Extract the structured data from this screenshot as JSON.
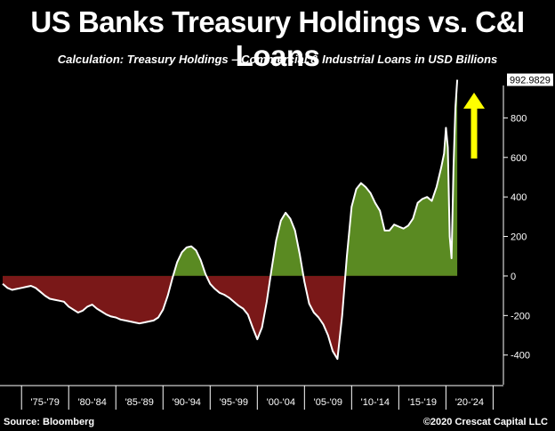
{
  "title": "US Banks Treasury Holdings vs. C&I Loans",
  "subtitle": "Calculation: Treasury Holdings – Commercial & Industrial Loans in USD Billions",
  "source_left": "Source: Bloomberg",
  "source_right": "©2020 Crescat Capital LLC",
  "last_value_label": "992.9829",
  "colors": {
    "positive": "#5a8a22",
    "negative": "#7a1818",
    "line": "#ffffff",
    "arrow": "#ffff00",
    "background": "#000000"
  },
  "chart_data": {
    "type": "area",
    "ylim": [
      -550,
      1000
    ],
    "y_ticks": [
      800,
      600,
      400,
      200,
      0,
      -200,
      -400
    ],
    "x_tick_labels": [
      "'75-'79",
      "'80-'84",
      "'85-'89",
      "'90-'94",
      "'95-'99",
      "'00-'04",
      "'05-'09",
      "'10-'14",
      "'15-'19",
      "'20-'24"
    ],
    "xlim": [
      1973.0,
      2026.0
    ],
    "series": [
      {
        "x": [
          1973.0,
          1973.5,
          1974.0,
          1974.5,
          1975.0,
          1975.5,
          1976.0,
          1976.5,
          1977.0,
          1977.5,
          1978.0,
          1978.5,
          1979.0,
          1979.5,
          1980.0,
          1980.5,
          1981.0,
          1981.5,
          1982.0,
          1982.5,
          1983.0,
          1983.5,
          1984.0,
          1984.5,
          1985.0,
          1985.5,
          1986.0,
          1986.5,
          1987.0,
          1987.5,
          1988.0,
          1988.5,
          1989.0,
          1989.5,
          1990.0,
          1990.5,
          1991.0,
          1991.5,
          1992.0,
          1992.5,
          1993.0,
          1993.5,
          1994.0,
          1994.5,
          1995.0,
          1995.5,
          1996.0,
          1996.5,
          1997.0,
          1997.5,
          1998.0,
          1998.5,
          1999.0,
          1999.5,
          2000.0,
          2000.5,
          2001.0,
          2001.5,
          2002.0,
          2002.5,
          2003.0,
          2003.5,
          2004.0,
          2004.5,
          2005.0,
          2005.5,
          2006.0,
          2006.5,
          2007.0,
          2007.5,
          2008.0,
          2008.5,
          2009.0,
          2009.5,
          2010.0,
          2010.5,
          2011.0,
          2011.5,
          2012.0,
          2012.5,
          2013.0,
          2013.5,
          2014.0,
          2014.5,
          2015.0,
          2015.5,
          2016.0,
          2016.5,
          2017.0,
          2017.5,
          2018.0,
          2018.5,
          2019.0,
          2019.5,
          2019.8,
          2020.0,
          2020.2,
          2020.4,
          2020.6,
          2020.8,
          2021.0,
          2021.2
        ],
        "values": [
          -40,
          -60,
          -70,
          -65,
          -60,
          -55,
          -50,
          -60,
          -80,
          -100,
          -115,
          -120,
          -125,
          -130,
          -155,
          -170,
          -185,
          -175,
          -155,
          -145,
          -165,
          -180,
          -195,
          -205,
          -210,
          -220,
          -225,
          -230,
          -235,
          -240,
          -235,
          -230,
          -225,
          -210,
          -170,
          -100,
          -10,
          70,
          120,
          145,
          150,
          130,
          80,
          10,
          -40,
          -65,
          -85,
          -95,
          -110,
          -130,
          -150,
          -165,
          -195,
          -260,
          -320,
          -260,
          -130,
          30,
          180,
          280,
          320,
          290,
          230,
          110,
          -30,
          -140,
          -185,
          -210,
          -245,
          -300,
          -380,
          -420,
          -200,
          100,
          350,
          440,
          470,
          450,
          420,
          370,
          330,
          230,
          230,
          260,
          250,
          240,
          255,
          290,
          370,
          390,
          400,
          380,
          450,
          550,
          620,
          750,
          650,
          200,
          90,
          550,
          850,
          993
        ]
      }
    ]
  }
}
